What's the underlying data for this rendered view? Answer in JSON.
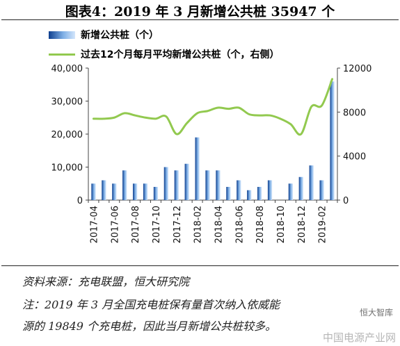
{
  "header": {
    "title": "图表4：2019 年 3 月新增公共桩 35947 个"
  },
  "legend": {
    "bar_label": "新增公共桩（个）",
    "line_label": "过去12个月每月平均新增公共桩（个，右侧）"
  },
  "colors": {
    "bar_dark": "#0e3f8f",
    "bar_light": "#cfe3fa",
    "line": "#92c94f"
  },
  "chart_data": {
    "type": "bar",
    "categories": [
      "2017-04",
      "2017-05",
      "2017-06",
      "2017-07",
      "2017-08",
      "2017-09",
      "2017-10",
      "2017-11",
      "2017-12",
      "2018-01",
      "2018-02",
      "2018-03",
      "2018-04",
      "2018-05",
      "2018-06",
      "2018-07",
      "2018-08",
      "2018-09",
      "2018-10",
      "2018-11",
      "2018-12",
      "2019-01",
      "2019-02",
      "2019-03"
    ],
    "tick_labels": [
      "2017-04",
      "2017-06",
      "2017-08",
      "2017-10",
      "2017-12",
      "2018-02",
      "2018-04",
      "2018-06",
      "2018-08",
      "2018-10",
      "2018-12",
      "2019-02"
    ],
    "series": [
      {
        "name": "新增公共桩（个）",
        "type": "bar",
        "axis": "left",
        "values": [
          5000,
          6000,
          5000,
          9000,
          5000,
          5000,
          4000,
          10000,
          9000,
          11000,
          19000,
          9000,
          9000,
          4000,
          6000,
          3000,
          4000,
          6000,
          null,
          5000,
          7000,
          10500,
          6000,
          35947
        ]
      },
      {
        "name": "过去12个月每月平均新增公共桩（个，右侧）",
        "type": "line",
        "axis": "right",
        "values": [
          7400,
          7400,
          7500,
          7900,
          7700,
          7500,
          7400,
          7600,
          6000,
          7000,
          7900,
          8100,
          8400,
          8300,
          8400,
          7800,
          7700,
          7700,
          7400,
          6900,
          6000,
          8500,
          8600,
          11000
        ]
      }
    ],
    "ylim_left": [
      0,
      40000
    ],
    "yticks_left": [
      "0",
      "10,000",
      "20,000",
      "30,000",
      "40,000"
    ],
    "ylim_right": [
      0,
      12000
    ],
    "yticks_right": [
      "0",
      "4000",
      "8000",
      "12000"
    ],
    "grid": false
  },
  "notes": {
    "source": "资料来源：充电联盟，恒大研究院",
    "note_line1": "注：2019 年 3 月全国充电桩保有量首次纳入依威能",
    "note_line2": "源的 19849 个充电桩，因此当月新增公共桩较多。"
  },
  "watermark": {
    "main": "中国电源产业网",
    "badge": "恒大智库"
  }
}
